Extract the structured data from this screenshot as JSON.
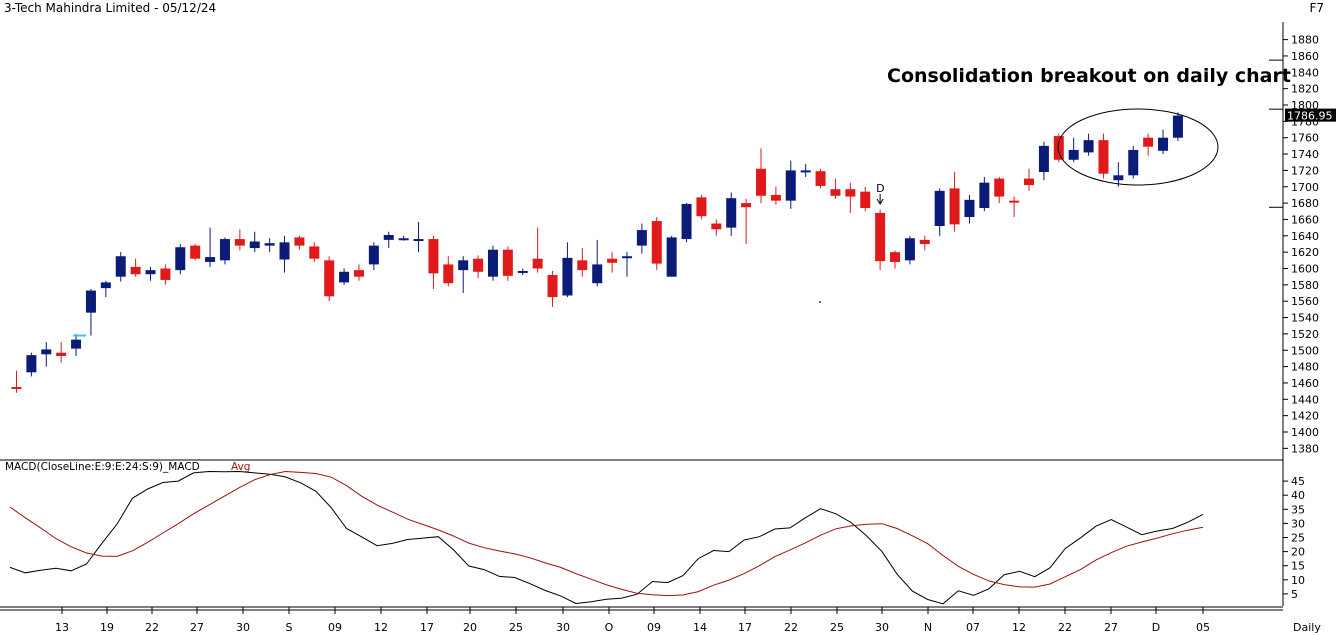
{
  "header": {
    "title": "3-Tech Mahindra Limited - 05/12/24",
    "key_hint": "F7"
  },
  "chart_data": [
    {
      "type": "candlestick",
      "title": "3-Tech Mahindra Limited - 05/12/24",
      "annotation": "Consolidation breakout on daily chart",
      "last_price_label": "1786.95",
      "marker_label": "D",
      "y_ticks": [
        1380,
        1400,
        1420,
        1440,
        1460,
        1480,
        1500,
        1520,
        1540,
        1560,
        1580,
        1600,
        1620,
        1640,
        1660,
        1680,
        1700,
        1720,
        1740,
        1760,
        1780,
        1800,
        1820,
        1840,
        1860,
        1880
      ],
      "ylim": [
        1365,
        1895
      ],
      "x_labels": [
        "13",
        "19",
        "22",
        "27",
        "30",
        "S",
        "09",
        "12",
        "17",
        "20",
        "25",
        "30",
        "O",
        "09",
        "14",
        "17",
        "22",
        "25",
        "30",
        "N",
        "07",
        "12",
        "22",
        "27",
        "D",
        "05"
      ],
      "x_axis_title": "Daily",
      "grid": false,
      "candles": [
        {
          "o": 1455,
          "h": 1475,
          "l": 1448,
          "c": 1453
        },
        {
          "o": 1473,
          "h": 1497,
          "l": 1468,
          "c": 1494
        },
        {
          "o": 1495,
          "h": 1510,
          "l": 1480,
          "c": 1501
        },
        {
          "o": 1497,
          "h": 1510,
          "l": 1485,
          "c": 1493
        },
        {
          "o": 1502,
          "h": 1520,
          "l": 1493,
          "c": 1513
        },
        {
          "o": 1546,
          "h": 1575,
          "l": 1518,
          "c": 1573
        },
        {
          "o": 1576,
          "h": 1585,
          "l": 1565,
          "c": 1583
        },
        {
          "o": 1590,
          "h": 1620,
          "l": 1584,
          "c": 1615
        },
        {
          "o": 1602,
          "h": 1612,
          "l": 1590,
          "c": 1593
        },
        {
          "o": 1593,
          "h": 1602,
          "l": 1585,
          "c": 1598
        },
        {
          "o": 1600,
          "h": 1605,
          "l": 1580,
          "c": 1586
        },
        {
          "o": 1598,
          "h": 1630,
          "l": 1593,
          "c": 1626
        },
        {
          "o": 1628,
          "h": 1630,
          "l": 1610,
          "c": 1612
        },
        {
          "o": 1608,
          "h": 1650,
          "l": 1602,
          "c": 1614
        },
        {
          "o": 1610,
          "h": 1638,
          "l": 1605,
          "c": 1636
        },
        {
          "o": 1636,
          "h": 1648,
          "l": 1622,
          "c": 1628
        },
        {
          "o": 1625,
          "h": 1645,
          "l": 1620,
          "c": 1633
        },
        {
          "o": 1628,
          "h": 1637,
          "l": 1620,
          "c": 1631
        },
        {
          "o": 1611,
          "h": 1640,
          "l": 1595,
          "c": 1632
        },
        {
          "o": 1638,
          "h": 1640,
          "l": 1623,
          "c": 1628
        },
        {
          "o": 1627,
          "h": 1632,
          "l": 1608,
          "c": 1612
        },
        {
          "o": 1610,
          "h": 1615,
          "l": 1560,
          "c": 1566
        },
        {
          "o": 1583,
          "h": 1600,
          "l": 1580,
          "c": 1596
        },
        {
          "o": 1598,
          "h": 1605,
          "l": 1585,
          "c": 1590
        },
        {
          "o": 1605,
          "h": 1632,
          "l": 1598,
          "c": 1628
        },
        {
          "o": 1635,
          "h": 1645,
          "l": 1625,
          "c": 1641
        },
        {
          "o": 1637,
          "h": 1640,
          "l": 1634,
          "c": 1637
        },
        {
          "o": 1636,
          "h": 1657,
          "l": 1620,
          "c": 1636
        },
        {
          "o": 1636,
          "h": 1640,
          "l": 1575,
          "c": 1594
        },
        {
          "o": 1605,
          "h": 1615,
          "l": 1578,
          "c": 1582
        },
        {
          "o": 1598,
          "h": 1615,
          "l": 1570,
          "c": 1610
        },
        {
          "o": 1612,
          "h": 1616,
          "l": 1588,
          "c": 1596
        },
        {
          "o": 1590,
          "h": 1628,
          "l": 1585,
          "c": 1623
        },
        {
          "o": 1623,
          "h": 1627,
          "l": 1585,
          "c": 1591
        },
        {
          "o": 1597,
          "h": 1600,
          "l": 1592,
          "c": 1597
        },
        {
          "o": 1612,
          "h": 1650,
          "l": 1595,
          "c": 1600
        },
        {
          "o": 1592,
          "h": 1597,
          "l": 1553,
          "c": 1565
        },
        {
          "o": 1567,
          "h": 1632,
          "l": 1565,
          "c": 1613
        },
        {
          "o": 1610,
          "h": 1625,
          "l": 1590,
          "c": 1598
        },
        {
          "o": 1582,
          "h": 1635,
          "l": 1578,
          "c": 1605
        },
        {
          "o": 1612,
          "h": 1620,
          "l": 1595,
          "c": 1607
        },
        {
          "o": 1615,
          "h": 1620,
          "l": 1590,
          "c": 1615
        },
        {
          "o": 1628,
          "h": 1655,
          "l": 1618,
          "c": 1647
        },
        {
          "o": 1658,
          "h": 1663,
          "l": 1598,
          "c": 1606
        },
        {
          "o": 1590,
          "h": 1640,
          "l": 1590,
          "c": 1638
        },
        {
          "o": 1636,
          "h": 1680,
          "l": 1632,
          "c": 1679
        },
        {
          "o": 1687,
          "h": 1690,
          "l": 1660,
          "c": 1664
        },
        {
          "o": 1655,
          "h": 1660,
          "l": 1640,
          "c": 1648
        },
        {
          "o": 1650,
          "h": 1693,
          "l": 1640,
          "c": 1686
        },
        {
          "o": 1680,
          "h": 1685,
          "l": 1630,
          "c": 1675
        },
        {
          "o": 1722,
          "h": 1747,
          "l": 1680,
          "c": 1689
        },
        {
          "o": 1690,
          "h": 1700,
          "l": 1678,
          "c": 1683
        },
        {
          "o": 1683,
          "h": 1732,
          "l": 1673,
          "c": 1720
        },
        {
          "o": 1720,
          "h": 1728,
          "l": 1712,
          "c": 1720
        },
        {
          "o": 1719,
          "h": 1722,
          "l": 1698,
          "c": 1701
        },
        {
          "o": 1697,
          "h": 1710,
          "l": 1685,
          "c": 1689
        },
        {
          "o": 1697,
          "h": 1705,
          "l": 1668,
          "c": 1688
        },
        {
          "o": 1694,
          "h": 1700,
          "l": 1670,
          "c": 1674
        },
        {
          "o": 1668,
          "h": 1672,
          "l": 1598,
          "c": 1609
        },
        {
          "o": 1620,
          "h": 1622,
          "l": 1600,
          "c": 1608
        },
        {
          "o": 1610,
          "h": 1640,
          "l": 1605,
          "c": 1637
        },
        {
          "o": 1635,
          "h": 1640,
          "l": 1622,
          "c": 1630
        },
        {
          "o": 1652,
          "h": 1698,
          "l": 1640,
          "c": 1695
        },
        {
          "o": 1698,
          "h": 1718,
          "l": 1645,
          "c": 1654
        },
        {
          "o": 1663,
          "h": 1690,
          "l": 1655,
          "c": 1684
        },
        {
          "o": 1674,
          "h": 1712,
          "l": 1670,
          "c": 1705
        },
        {
          "o": 1710,
          "h": 1712,
          "l": 1680,
          "c": 1688
        },
        {
          "o": 1683,
          "h": 1688,
          "l": 1663,
          "c": 1682
        },
        {
          "o": 1710,
          "h": 1722,
          "l": 1695,
          "c": 1702
        },
        {
          "o": 1718,
          "h": 1755,
          "l": 1708,
          "c": 1750
        },
        {
          "o": 1762,
          "h": 1765,
          "l": 1730,
          "c": 1733
        },
        {
          "o": 1733,
          "h": 1760,
          "l": 1730,
          "c": 1745
        },
        {
          "o": 1742,
          "h": 1765,
          "l": 1738,
          "c": 1757
        },
        {
          "o": 1757,
          "h": 1765,
          "l": 1710,
          "c": 1716
        },
        {
          "o": 1708,
          "h": 1730,
          "l": 1700,
          "c": 1714
        },
        {
          "o": 1714,
          "h": 1750,
          "l": 1710,
          "c": 1745
        },
        {
          "o": 1760,
          "h": 1765,
          "l": 1738,
          "c": 1749
        },
        {
          "o": 1744,
          "h": 1770,
          "l": 1740,
          "c": 1760
        },
        {
          "o": 1760,
          "h": 1791,
          "l": 1756,
          "c": 1787
        }
      ]
    },
    {
      "type": "line",
      "title": "MACD(CloseLine:E:9:E:24:S:9)_MACD",
      "legend_extra": "Avg",
      "y_ticks": [
        5,
        10,
        15,
        20,
        25,
        30,
        35,
        40,
        45
      ],
      "ylim": [
        0,
        50
      ],
      "series": [
        {
          "name": "MACD",
          "color": "#000000",
          "values": [
            14.4,
            12.5,
            13.4,
            14.1,
            13.2,
            15.6,
            22.9,
            29.8,
            38.9,
            42.2,
            44.5,
            45.0,
            47.9,
            48.4,
            48.3,
            48.4,
            47.9,
            47.4,
            46.5,
            44.4,
            41.4,
            35.6,
            28.2,
            25.2,
            22.1,
            22.9,
            24.3,
            24.8,
            25.3,
            20.6,
            14.9,
            13.6,
            11.2,
            10.8,
            8.6,
            6.2,
            4.3,
            1.6,
            2.2,
            3.1,
            3.5,
            4.9,
            9.4,
            9.0,
            11.5,
            17.5,
            20.4,
            20.0,
            24.1,
            25.3,
            28.0,
            28.4,
            32.0,
            35.2,
            33.4,
            30.3,
            25.6,
            20.1,
            12.0,
            6.0,
            3.0,
            1.5,
            6.1,
            4.5,
            6.8,
            11.8,
            13.0,
            11.1,
            14.3,
            21.1,
            24.9,
            29.0,
            31.4,
            28.7,
            26.0,
            27.3,
            28.2,
            30.4,
            33.2
          ]
        },
        {
          "name": "Avg",
          "color": "#a01010",
          "values": [
            35.8,
            32.0,
            28.4,
            24.6,
            21.7,
            19.5,
            18.4,
            18.3,
            20.3,
            23.3,
            26.6,
            29.9,
            33.4,
            36.5,
            39.6,
            42.7,
            45.5,
            47.3,
            48.4,
            48.1,
            47.7,
            46.4,
            43.4,
            39.6,
            36.5,
            34.0,
            31.5,
            29.6,
            27.7,
            25.5,
            23.0,
            21.4,
            20.2,
            19.2,
            17.8,
            16.0,
            14.4,
            12.2,
            10.2,
            8.2,
            6.6,
            5.2,
            4.7,
            4.4,
            4.6,
            5.8,
            8.1,
            9.9,
            12.2,
            15.0,
            18.2,
            20.6,
            23.1,
            25.8,
            28.1,
            29.1,
            29.7,
            29.9,
            28.2,
            25.6,
            22.8,
            18.6,
            14.8,
            11.9,
            9.6,
            8.3,
            7.5,
            7.4,
            8.5,
            11.1,
            13.7,
            17.0,
            19.6,
            21.9,
            23.4,
            24.8,
            26.3,
            27.6,
            28.6
          ]
        }
      ]
    }
  ]
}
